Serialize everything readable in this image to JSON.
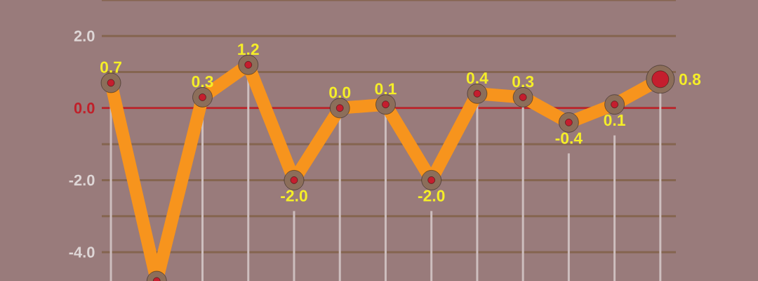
{
  "chart_data": {
    "type": "line",
    "categories": [
      null,
      null,
      null,
      null,
      null,
      null,
      null,
      null,
      null,
      null,
      null,
      null,
      null
    ],
    "series": [
      {
        "color": "#f7941d",
        "values": [
          0.7,
          -4.8,
          0.3,
          1.2,
          -2.0,
          0.0,
          0.1,
          -2.0,
          0.4,
          0.3,
          -0.4,
          0.1,
          0.8
        ],
        "value_labels": [
          "0.7",
          null,
          "0.3",
          "1.2",
          "-2.0",
          "0.0",
          "0.1",
          "-2.0",
          "0.4",
          "0.3",
          "-0.4",
          "0.1",
          "0.8"
        ]
      }
    ],
    "ylim": [
      -4.8,
      3.0
    ],
    "yticks": [
      {
        "value": 3,
        "label": null
      },
      {
        "value": 2,
        "label": "2.0"
      },
      {
        "value": 1,
        "label": null
      },
      {
        "value": 0,
        "label": "0.0"
      },
      {
        "value": -1,
        "label": null
      },
      {
        "value": -2,
        "label": "-2.0"
      },
      {
        "value": -3,
        "label": null
      },
      {
        "value": -4,
        "label": "-4.0"
      }
    ],
    "ref_lines": [
      {
        "axis": "y",
        "value": 0,
        "color": "#c0202a"
      }
    ],
    "grid": true,
    "marker": "circle",
    "line_style": "solid",
    "tick_labels": "y"
  }
}
